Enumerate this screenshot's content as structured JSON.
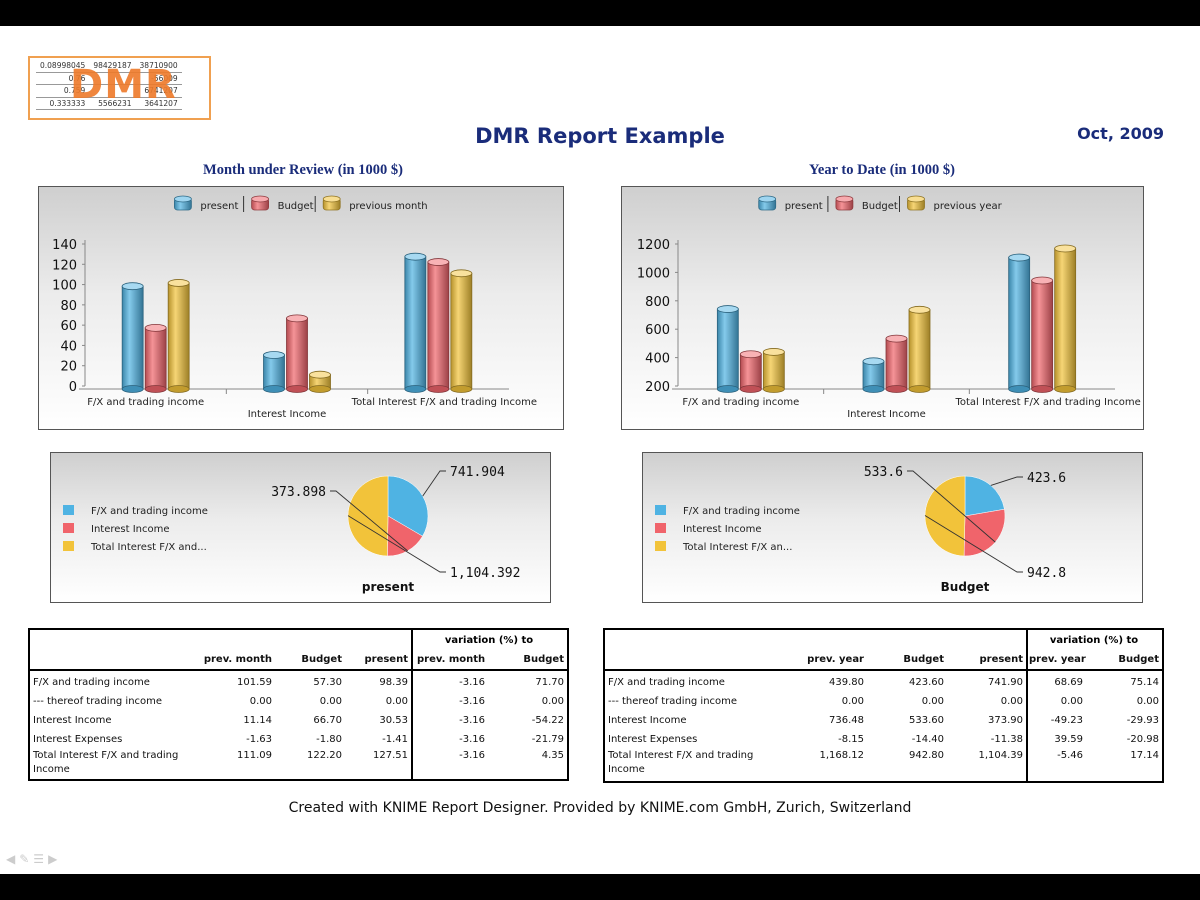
{
  "report": {
    "title": "DMR Report Example",
    "date": "Oct, 2009",
    "footer": "Created with KNIME Report Designer. Provided by KNIME.com GmbH, Zurich, Switzerland"
  },
  "logo": {
    "word": "DMR",
    "rows": [
      [
        "0.08998045",
        "98429187",
        "38710900"
      ],
      [
        "0.76",
        "",
        "-56009"
      ],
      [
        "0.759",
        "",
        "6741207"
      ],
      [
        "0.333333",
        "5566231",
        "3641207"
      ]
    ]
  },
  "colors": {
    "present": "#4fb3e3",
    "budget": "#f0646b",
    "previous": "#f2c33a",
    "title": "#1a2c7a"
  },
  "left": {
    "section_title": "Month under Review (in 1000 $)",
    "pie_legend": [
      "F/X and trading income",
      "Interest Income",
      "Total Interest F/X and..."
    ],
    "pie_title": "present",
    "pie_labels": [
      "741.904",
      "373.898",
      "1,104.392"
    ],
    "table": {
      "variation_header": "variation (%) to",
      "columns": [
        "prev. month",
        "Budget",
        "present",
        "prev. month",
        "Budget"
      ],
      "rows": [
        {
          "label": "F/X and trading income",
          "label2": "",
          "values": [
            "101.59",
            "57.30",
            "98.39",
            "-3.16",
            "71.70"
          ]
        },
        {
          "label": "--- thereof trading income",
          "label2": "",
          "values": [
            "0.00",
            "0.00",
            "0.00",
            "-3.16",
            "0.00"
          ]
        },
        {
          "label": "Interest Income",
          "label2": "",
          "values": [
            "11.14",
            "66.70",
            "30.53",
            "-3.16",
            "-54.22"
          ]
        },
        {
          "label": "Interest Expenses",
          "label2": "",
          "values": [
            "-1.63",
            "-1.80",
            "-1.41",
            "-3.16",
            "-21.79"
          ]
        },
        {
          "label": "Total Interest F/X and trading",
          "label2": "Income",
          "values": [
            "111.09",
            "122.20",
            "127.51",
            "-3.16",
            "4.35"
          ]
        }
      ]
    }
  },
  "right": {
    "section_title": "Year to Date (in 1000 $)",
    "pie_legend": [
      "F/X and trading income",
      "Interest Income",
      "Total Interest F/X an..."
    ],
    "pie_title": "Budget",
    "pie_labels": [
      "423.6",
      "533.6",
      "942.8"
    ],
    "table": {
      "variation_header": "variation (%) to",
      "columns": [
        "prev. year",
        "Budget",
        "present",
        "prev. year",
        "Budget"
      ],
      "rows": [
        {
          "label": "F/X and trading income",
          "label2": "",
          "values": [
            "439.80",
            "423.60",
            "741.90",
            "68.69",
            "75.14"
          ]
        },
        {
          "label": "--- thereof trading income",
          "label2": "",
          "values": [
            "0.00",
            "0.00",
            "0.00",
            "0.00",
            "0.00"
          ]
        },
        {
          "label": "Interest Income",
          "label2": "",
          "values": [
            "736.48",
            "533.60",
            "373.90",
            "-49.23",
            "-29.93"
          ]
        },
        {
          "label": "Interest Expenses",
          "label2": "",
          "values": [
            "-8.15",
            "-14.40",
            "-11.38",
            "39.59",
            "-20.98"
          ]
        },
        {
          "label": "Total Interest F/X and trading",
          "label2": "Income",
          "values": [
            "1,168.12",
            "942.80",
            "1,104.39",
            "-5.46",
            "17.14"
          ]
        }
      ]
    }
  },
  "chart_data": [
    {
      "type": "bar",
      "categories": [
        "F/X and trading income",
        "Interest Income",
        "Total Interest F/X and trading Income"
      ],
      "series": [
        {
          "name": "present",
          "values": [
            98.39,
            30.53,
            127.51
          ]
        },
        {
          "name": "Budget",
          "values": [
            57.3,
            66.7,
            122.2
          ]
        },
        {
          "name": "previous month",
          "values": [
            101.59,
            11.14,
            111.09
          ]
        }
      ],
      "ylim": [
        0,
        140
      ],
      "yticks": [
        "140",
        "120",
        "100",
        "80",
        "60",
        "40",
        "20",
        "0"
      ],
      "grid": false,
      "legend": "top-center"
    },
    {
      "type": "bar",
      "categories": [
        "F/X and trading income",
        "Interest Income",
        "Total Interest F/X and trading Income"
      ],
      "series": [
        {
          "name": "present",
          "values": [
            741.9,
            373.9,
            1104.39
          ]
        },
        {
          "name": "Budget",
          "values": [
            423.6,
            533.6,
            942.8
          ]
        },
        {
          "name": "previous year",
          "values": [
            439.8,
            736.48,
            1168.12
          ]
        }
      ],
      "ylim": [
        200,
        1200
      ],
      "yticks": [
        "1200",
        "1000",
        "800",
        "600",
        "400",
        "200"
      ],
      "grid": false,
      "legend": "top-center"
    },
    {
      "type": "pie",
      "title": "present",
      "labels": [
        "F/X and trading income",
        "Interest Income",
        "Total Interest F/X and..."
      ],
      "values": [
        741.904,
        373.898,
        1104.392
      ],
      "legend": "left"
    },
    {
      "type": "pie",
      "title": "Budget",
      "labels": [
        "F/X and trading income",
        "Interest Income",
        "Total Interest F/X an..."
      ],
      "values": [
        423.6,
        533.6,
        942.8
      ],
      "legend": "left"
    }
  ]
}
